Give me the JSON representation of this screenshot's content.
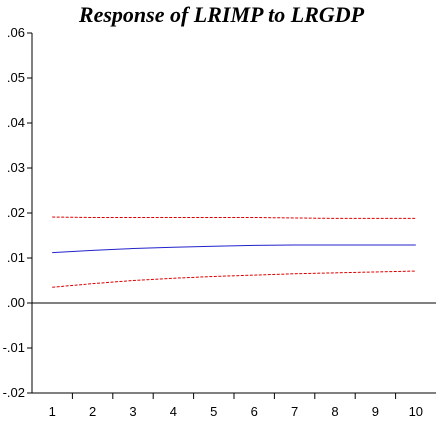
{
  "chart_data": {
    "type": "line",
    "title": "Response of LRIMP to LRGDP",
    "xlabel": "",
    "ylabel": "",
    "x": [
      1,
      2,
      3,
      4,
      5,
      6,
      7,
      8,
      9,
      10
    ],
    "xlim": [
      0.5,
      10.5
    ],
    "ylim": [
      -0.02,
      0.06
    ],
    "yticks": [
      0.06,
      0.05,
      0.04,
      0.03,
      0.02,
      0.01,
      0.0,
      -0.01,
      -0.02
    ],
    "ytick_labels": [
      ".06",
      ".05",
      ".04",
      ".03",
      ".02",
      ".01",
      ".00",
      "-.01",
      "-.02"
    ],
    "xtick_labels": [
      "1",
      "2",
      "3",
      "4",
      "5",
      "6",
      "7",
      "8",
      "9",
      "10"
    ],
    "grid": false,
    "zero_line": true,
    "series": [
      {
        "values": [
          0.0112,
          0.0117,
          0.0121,
          0.0124,
          0.0126,
          0.0128,
          0.0129,
          0.0129,
          0.0129,
          0.0129
        ],
        "color": "#2222cc",
        "style": "solid"
      },
      {
        "values": [
          0.0191,
          0.019,
          0.019,
          0.019,
          0.019,
          0.019,
          0.0189,
          0.0188,
          0.0188,
          0.0188
        ],
        "color": "#dd0000",
        "style": "dashed"
      },
      {
        "values": [
          0.0035,
          0.0043,
          0.005,
          0.0055,
          0.0059,
          0.0062,
          0.0065,
          0.0067,
          0.0069,
          0.0071
        ],
        "color": "#dd0000",
        "style": "dashed"
      }
    ]
  },
  "colors": {
    "axis": "#000000",
    "zero_line": "#000000"
  }
}
